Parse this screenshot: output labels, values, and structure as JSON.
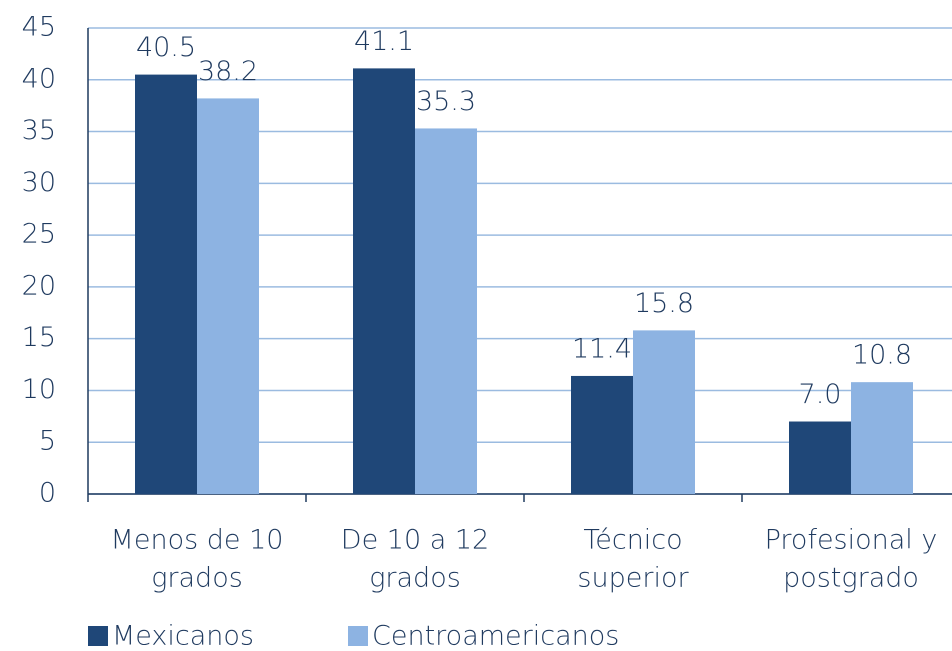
{
  "chart_data": {
    "type": "bar",
    "categories": [
      [
        "Menos de 10",
        "grados"
      ],
      [
        "De 10 a 12",
        "grados"
      ],
      [
        "Técnico",
        "superior"
      ],
      [
        "Profesional y",
        "postgrado"
      ]
    ],
    "series": [
      {
        "name": "Mexicanos",
        "color": "#1f4778",
        "values": [
          40.5,
          41.1,
          11.4,
          7.0
        ],
        "value_labels": [
          "40.5",
          "41.1",
          "11.4",
          "7.0"
        ]
      },
      {
        "name": "Centroamericanos",
        "color": "#8db3e2",
        "values": [
          38.2,
          35.3,
          15.8,
          10.8
        ],
        "value_labels": [
          "38.2",
          "35.3",
          "15.8",
          "10.8"
        ]
      }
    ],
    "ylim": [
      0,
      45
    ],
    "yticks": [
      0,
      5,
      10,
      15,
      20,
      25,
      30,
      35,
      40,
      45
    ],
    "grid": true
  }
}
